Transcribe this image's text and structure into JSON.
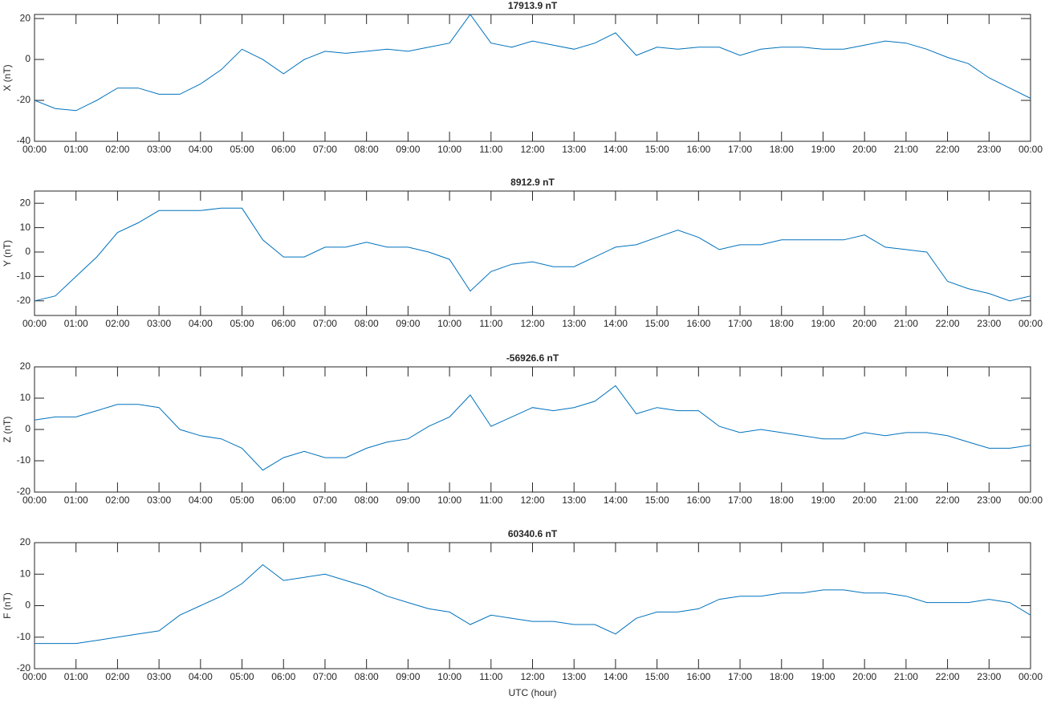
{
  "chart_data": [
    {
      "type": "line",
      "title": "17913.9 nT",
      "ylabel": "X (nT)",
      "color": "#0072bd",
      "x": [
        0,
        0.5,
        1,
        1.5,
        2,
        2.5,
        3,
        3.5,
        4,
        4.5,
        5,
        5.5,
        6,
        6.5,
        7,
        7.5,
        8,
        8.5,
        9,
        9.5,
        10,
        10.5,
        11,
        11.5,
        12,
        12.5,
        13,
        13.5,
        14,
        14.5,
        15,
        15.5,
        16,
        16.5,
        17,
        17.5,
        18,
        18.5,
        19,
        19.5,
        20,
        20.5,
        21,
        21.5,
        22,
        22.5,
        23,
        23.5,
        24
      ],
      "values": [
        -20,
        -24,
        -25,
        -20,
        -14,
        -14,
        -17,
        -17,
        -12,
        -5,
        5,
        0,
        -7,
        0,
        4,
        3,
        4,
        5,
        4,
        6,
        8,
        22,
        8,
        6,
        9,
        7,
        5,
        8,
        13,
        2,
        6,
        5,
        6,
        6,
        2,
        5,
        6,
        6,
        5,
        5,
        7,
        9,
        8,
        5,
        1,
        -2,
        -9,
        -14,
        -19
      ],
      "xlim": [
        0,
        24
      ],
      "ylim": [
        -40,
        22
      ],
      "yticks": [
        -40,
        -20,
        0,
        20
      ],
      "xticks": [
        {
          "value": 0,
          "label": "00:00"
        },
        {
          "value": 1,
          "label": "01:00"
        },
        {
          "value": 2,
          "label": "02:00"
        },
        {
          "value": 3,
          "label": "03:00"
        },
        {
          "value": 4,
          "label": "04:00"
        },
        {
          "value": 5,
          "label": "05:00"
        },
        {
          "value": 6,
          "label": "06:00"
        },
        {
          "value": 7,
          "label": "07:00"
        },
        {
          "value": 8,
          "label": "08:00"
        },
        {
          "value": 9,
          "label": "09:00"
        },
        {
          "value": 10,
          "label": "10:00"
        },
        {
          "value": 11,
          "label": "11:00"
        },
        {
          "value": 12,
          "label": "12:00"
        },
        {
          "value": 13,
          "label": "13:00"
        },
        {
          "value": 14,
          "label": "14:00"
        },
        {
          "value": 15,
          "label": "15:00"
        },
        {
          "value": 16,
          "label": "16:00"
        },
        {
          "value": 17,
          "label": "17:00"
        },
        {
          "value": 18,
          "label": "18:00"
        },
        {
          "value": 19,
          "label": "19:00"
        },
        {
          "value": 20,
          "label": "20:00"
        },
        {
          "value": 21,
          "label": "21:00"
        },
        {
          "value": 22,
          "label": "22:00"
        },
        {
          "value": 23,
          "label": "23:00"
        },
        {
          "value": 24,
          "label": "00:00"
        }
      ]
    },
    {
      "type": "line",
      "title": "8912.9 nT",
      "ylabel": "Y (nT)",
      "color": "#0072bd",
      "x": [
        0,
        0.5,
        1,
        1.5,
        2,
        2.5,
        3,
        3.5,
        4,
        4.5,
        5,
        5.5,
        6,
        6.5,
        7,
        7.5,
        8,
        8.5,
        9,
        9.5,
        10,
        10.5,
        11,
        11.5,
        12,
        12.5,
        13,
        13.5,
        14,
        14.5,
        15,
        15.5,
        16,
        16.5,
        17,
        17.5,
        18,
        18.5,
        19,
        19.5,
        20,
        20.5,
        21,
        21.5,
        22,
        22.5,
        23,
        23.5,
        24
      ],
      "values": [
        -20,
        -18,
        -10,
        -2,
        8,
        12,
        17,
        17,
        17,
        18,
        18,
        5,
        -2,
        -2,
        2,
        2,
        4,
        2,
        2,
        0,
        -3,
        -16,
        -8,
        -5,
        -4,
        -6,
        -6,
        -2,
        2,
        3,
        6,
        9,
        6,
        1,
        3,
        3,
        5,
        5,
        5,
        5,
        7,
        2,
        1,
        0,
        -12,
        -15,
        -17,
        -20,
        -18
      ],
      "xlim": [
        0,
        24
      ],
      "ylim": [
        -26,
        25
      ],
      "yticks": [
        -20,
        -10,
        0,
        10,
        20
      ],
      "xticks": [
        {
          "value": 0,
          "label": "00:00"
        },
        {
          "value": 1,
          "label": "01:00"
        },
        {
          "value": 2,
          "label": "02:00"
        },
        {
          "value": 3,
          "label": "03:00"
        },
        {
          "value": 4,
          "label": "04:00"
        },
        {
          "value": 5,
          "label": "05:00"
        },
        {
          "value": 6,
          "label": "06:00"
        },
        {
          "value": 7,
          "label": "07:00"
        },
        {
          "value": 8,
          "label": "08:00"
        },
        {
          "value": 9,
          "label": "09:00"
        },
        {
          "value": 10,
          "label": "10:00"
        },
        {
          "value": 11,
          "label": "11:00"
        },
        {
          "value": 12,
          "label": "12:00"
        },
        {
          "value": 13,
          "label": "13:00"
        },
        {
          "value": 14,
          "label": "14:00"
        },
        {
          "value": 15,
          "label": "15:00"
        },
        {
          "value": 16,
          "label": "16:00"
        },
        {
          "value": 17,
          "label": "17:00"
        },
        {
          "value": 18,
          "label": "18:00"
        },
        {
          "value": 19,
          "label": "19:00"
        },
        {
          "value": 20,
          "label": "20:00"
        },
        {
          "value": 21,
          "label": "21:00"
        },
        {
          "value": 22,
          "label": "22:00"
        },
        {
          "value": 23,
          "label": "23:00"
        },
        {
          "value": 24,
          "label": "00:00"
        }
      ]
    },
    {
      "type": "line",
      "title": "-56926.6 nT",
      "ylabel": "Z (nT)",
      "color": "#0072bd",
      "x": [
        0,
        0.5,
        1,
        1.5,
        2,
        2.5,
        3,
        3.5,
        4,
        4.5,
        5,
        5.5,
        6,
        6.5,
        7,
        7.5,
        8,
        8.5,
        9,
        9.5,
        10,
        10.5,
        11,
        11.5,
        12,
        12.5,
        13,
        13.5,
        14,
        14.5,
        15,
        15.5,
        16,
        16.5,
        17,
        17.5,
        18,
        18.5,
        19,
        19.5,
        20,
        20.5,
        21,
        21.5,
        22,
        22.5,
        23,
        23.5,
        24
      ],
      "values": [
        3,
        4,
        4,
        6,
        8,
        8,
        7,
        0,
        -2,
        -3,
        -6,
        -13,
        -9,
        -7,
        -9,
        -9,
        -6,
        -4,
        -3,
        1,
        4,
        11,
        1,
        4,
        7,
        6,
        7,
        9,
        14,
        5,
        7,
        6,
        6,
        1,
        -1,
        0,
        -1,
        -2,
        -3,
        -3,
        -1,
        -2,
        -1,
        -1,
        -2,
        -4,
        -6,
        -6,
        -5
      ],
      "xlim": [
        0,
        24
      ],
      "ylim": [
        -20,
        20
      ],
      "yticks": [
        -20,
        -10,
        0,
        10,
        20
      ],
      "xticks": [
        {
          "value": 0,
          "label": "00:00"
        },
        {
          "value": 1,
          "label": "01:00"
        },
        {
          "value": 2,
          "label": "02:00"
        },
        {
          "value": 3,
          "label": "03:00"
        },
        {
          "value": 4,
          "label": "04:00"
        },
        {
          "value": 5,
          "label": "05:00"
        },
        {
          "value": 6,
          "label": "06:00"
        },
        {
          "value": 7,
          "label": "07:00"
        },
        {
          "value": 8,
          "label": "08:00"
        },
        {
          "value": 9,
          "label": "09:00"
        },
        {
          "value": 10,
          "label": "10:00"
        },
        {
          "value": 11,
          "label": "11:00"
        },
        {
          "value": 12,
          "label": "12:00"
        },
        {
          "value": 13,
          "label": "13:00"
        },
        {
          "value": 14,
          "label": "14:00"
        },
        {
          "value": 15,
          "label": "15:00"
        },
        {
          "value": 16,
          "label": "16:00"
        },
        {
          "value": 17,
          "label": "17:00"
        },
        {
          "value": 18,
          "label": "18:00"
        },
        {
          "value": 19,
          "label": "19:00"
        },
        {
          "value": 20,
          "label": "20:00"
        },
        {
          "value": 21,
          "label": "21:00"
        },
        {
          "value": 22,
          "label": "22:00"
        },
        {
          "value": 23,
          "label": "23:00"
        },
        {
          "value": 24,
          "label": "00:00"
        }
      ]
    },
    {
      "type": "line",
      "title": "60340.6 nT",
      "ylabel": "F (nT)",
      "xlabel": "UTC (hour)",
      "color": "#0072bd",
      "x": [
        0,
        0.5,
        1,
        1.5,
        2,
        2.5,
        3,
        3.5,
        4,
        4.5,
        5,
        5.5,
        6,
        6.5,
        7,
        7.5,
        8,
        8.5,
        9,
        9.5,
        10,
        10.5,
        11,
        11.5,
        12,
        12.5,
        13,
        13.5,
        14,
        14.5,
        15,
        15.5,
        16,
        16.5,
        17,
        17.5,
        18,
        18.5,
        19,
        19.5,
        20,
        20.5,
        21,
        21.5,
        22,
        22.5,
        23,
        23.5,
        24
      ],
      "values": [
        -12,
        -12,
        -12,
        -11,
        -10,
        -9,
        -8,
        -3,
        0,
        3,
        7,
        13,
        8,
        9,
        10,
        8,
        6,
        3,
        1,
        -1,
        -2,
        -6,
        -3,
        -4,
        -5,
        -5,
        -6,
        -6,
        -9,
        -4,
        -2,
        -2,
        -1,
        2,
        3,
        3,
        4,
        4,
        5,
        5,
        4,
        4,
        3,
        1,
        1,
        1,
        2,
        1,
        -3
      ],
      "xlim": [
        0,
        24
      ],
      "ylim": [
        -20,
        20
      ],
      "yticks": [
        -20,
        -10,
        0,
        10,
        20
      ],
      "xticks": [
        {
          "value": 0,
          "label": "00:00"
        },
        {
          "value": 1,
          "label": "01:00"
        },
        {
          "value": 2,
          "label": "02:00"
        },
        {
          "value": 3,
          "label": "03:00"
        },
        {
          "value": 4,
          "label": "04:00"
        },
        {
          "value": 5,
          "label": "05:00"
        },
        {
          "value": 6,
          "label": "06:00"
        },
        {
          "value": 7,
          "label": "07:00"
        },
        {
          "value": 8,
          "label": "08:00"
        },
        {
          "value": 9,
          "label": "09:00"
        },
        {
          "value": 10,
          "label": "10:00"
        },
        {
          "value": 11,
          "label": "11:00"
        },
        {
          "value": 12,
          "label": "12:00"
        },
        {
          "value": 13,
          "label": "13:00"
        },
        {
          "value": 14,
          "label": "14:00"
        },
        {
          "value": 15,
          "label": "15:00"
        },
        {
          "value": 16,
          "label": "16:00"
        },
        {
          "value": 17,
          "label": "17:00"
        },
        {
          "value": 18,
          "label": "18:00"
        },
        {
          "value": 19,
          "label": "19:00"
        },
        {
          "value": 20,
          "label": "20:00"
        },
        {
          "value": 21,
          "label": "21:00"
        },
        {
          "value": 22,
          "label": "22:00"
        },
        {
          "value": 23,
          "label": "23:00"
        },
        {
          "value": 24,
          "label": "00:00"
        }
      ]
    }
  ]
}
